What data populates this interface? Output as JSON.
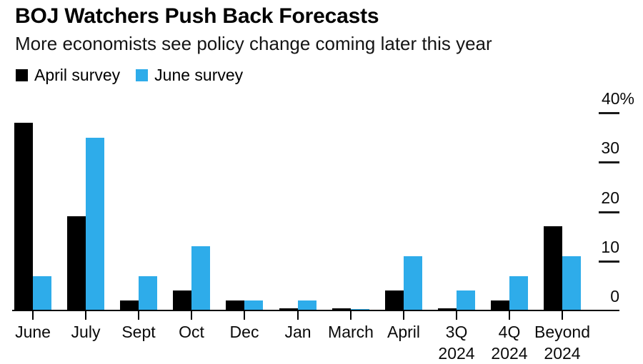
{
  "header": {
    "title": "BOJ Watchers Push Back Forecasts",
    "subtitle": "More economists see policy change coming later this year"
  },
  "legend": [
    {
      "label": "April survey",
      "color": "#000000"
    },
    {
      "label": "June survey",
      "color": "#2EACEA"
    }
  ],
  "chart_data": {
    "type": "bar",
    "title": "BOJ Watchers Push Back Forecasts",
    "subtitle": "More economists see policy change coming later this year",
    "unit": "%",
    "categories": [
      "June",
      "July",
      "Sept",
      "Oct",
      "Dec",
      "Jan",
      "March",
      "April",
      "3Q 2024",
      "4Q 2024",
      "Beyond 2024"
    ],
    "series": [
      {
        "name": "April survey",
        "color": "#000000",
        "values": [
          38,
          19,
          2,
          4,
          2,
          0.5,
          0.5,
          4,
          0.5,
          2,
          17
        ]
      },
      {
        "name": "June survey",
        "color": "#2EACEA",
        "values": [
          7,
          35,
          7,
          13,
          2,
          2,
          0.3,
          11,
          4,
          7,
          11
        ]
      }
    ],
    "ylim": [
      0,
      40
    ],
    "y_ticks": [
      {
        "value": 40,
        "label": "40%"
      },
      {
        "value": 30,
        "label": "30"
      },
      {
        "value": 20,
        "label": "20"
      },
      {
        "value": 10,
        "label": "10"
      },
      {
        "value": 0,
        "label": "0"
      }
    ],
    "axis_side": "right",
    "grid": false,
    "legend_position": "top-left",
    "background": "#ffffff"
  }
}
